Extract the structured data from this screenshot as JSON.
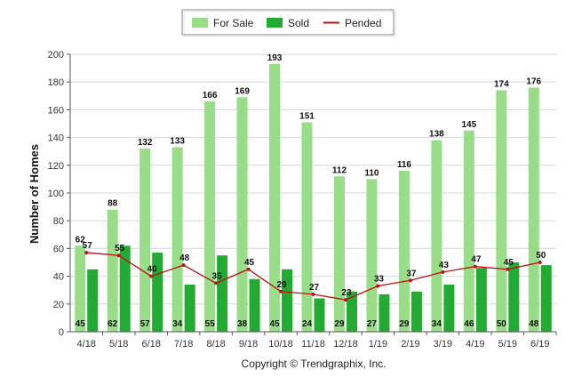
{
  "chart_data": {
    "type": "bar",
    "categories": [
      "4/18",
      "5/18",
      "6/18",
      "7/18",
      "8/18",
      "9/18",
      "10/18",
      "11/18",
      "12/18",
      "1/19",
      "2/19",
      "3/19",
      "4/19",
      "5/19",
      "6/19"
    ],
    "series": [
      {
        "name": "For Sale",
        "type": "bar",
        "color": "#99dd88",
        "values": [
          62,
          88,
          132,
          133,
          166,
          169,
          193,
          151,
          112,
          110,
          116,
          138,
          145,
          174,
          176
        ]
      },
      {
        "name": "Sold",
        "type": "bar",
        "color": "#22aa33",
        "values": [
          45,
          62,
          57,
          34,
          55,
          38,
          45,
          24,
          29,
          27,
          29,
          34,
          46,
          50,
          48
        ]
      },
      {
        "name": "Pended",
        "type": "line",
        "color": "#bb1111",
        "values": [
          57,
          55,
          40,
          48,
          35,
          45,
          29,
          27,
          23,
          33,
          37,
          43,
          47,
          45,
          50
        ]
      }
    ],
    "ylabel": "Number of Homes",
    "ylim": [
      0,
      200
    ],
    "yticks": [
      0,
      20,
      40,
      60,
      80,
      100,
      120,
      140,
      160,
      180,
      200
    ],
    "grid": true,
    "legend_position": "top-center",
    "copyright": "Copyright © Trendgraphix, Inc."
  }
}
